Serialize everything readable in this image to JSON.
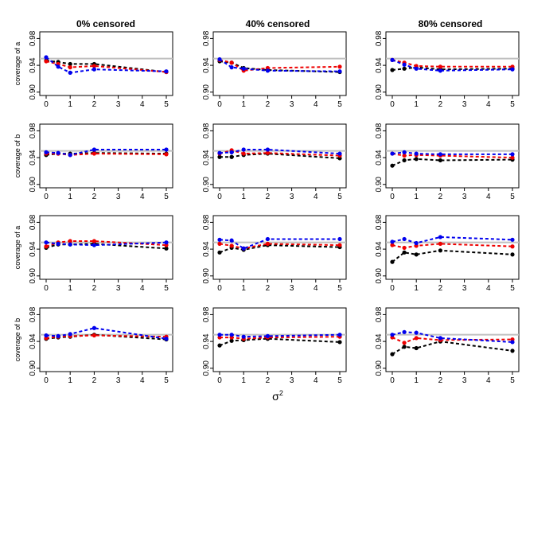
{
  "figure": {
    "column_titles": [
      "0% censored",
      "40% censored",
      "80% censored"
    ],
    "row_ylabels": [
      "coverage of a",
      "coverage of b",
      "coverage of a",
      "coverage of b"
    ],
    "xlabel_base": "σ",
    "xlabel_superscript": "2",
    "reference_color": "#c0c0c0",
    "series_colors": [
      "#000000",
      "#ee0000",
      "#0000ee"
    ]
  },
  "chart_data": [
    {
      "type": "line",
      "panel": "row1-0% censored",
      "title": "0% censored",
      "ylabel": "coverage of a",
      "x": [
        0,
        0.5,
        1,
        2,
        5
      ],
      "xticks": [
        0,
        1,
        2,
        3,
        4,
        5
      ],
      "yticks": [
        0.9,
        0.94,
        0.98
      ],
      "ylim": [
        0.895,
        0.99
      ],
      "xlim": [
        0,
        5
      ],
      "reference_line": 0.95,
      "series": [
        {
          "values": [
            0.947,
            0.945,
            0.942,
            0.942,
            0.93
          ]
        },
        {
          "values": [
            0.946,
            0.942,
            0.937,
            0.939,
            0.93
          ]
        },
        {
          "values": [
            0.952,
            0.938,
            0.929,
            0.934,
            0.931
          ]
        }
      ]
    },
    {
      "type": "line",
      "panel": "row1-40% censored",
      "title": "40% censored",
      "ylabel": "",
      "x": [
        0,
        0.5,
        1,
        2,
        5
      ],
      "xticks": [
        0,
        1,
        2,
        3,
        4,
        5
      ],
      "yticks": [
        0.9,
        0.94,
        0.98
      ],
      "ylim": [
        0.895,
        0.99
      ],
      "xlim": [
        0,
        5
      ],
      "reference_line": 0.95,
      "series": [
        {
          "values": [
            0.946,
            0.944,
            0.936,
            0.933,
            0.93
          ]
        },
        {
          "values": [
            0.948,
            0.944,
            0.932,
            0.936,
            0.938
          ]
        },
        {
          "values": [
            0.949,
            0.937,
            0.935,
            0.932,
            0.931
          ]
        }
      ]
    },
    {
      "type": "line",
      "panel": "row1-80% censored",
      "title": "80% censored",
      "ylabel": "",
      "x": [
        0,
        0.5,
        1,
        2,
        5
      ],
      "xticks": [
        0,
        1,
        2,
        3,
        4,
        5
      ],
      "yticks": [
        0.9,
        0.94,
        0.98
      ],
      "ylim": [
        0.895,
        0.99
      ],
      "xlim": [
        0,
        5
      ],
      "reference_line": 0.95,
      "series": [
        {
          "values": [
            0.933,
            0.935,
            0.937,
            0.934,
            0.935
          ]
        },
        {
          "values": [
            0.948,
            0.944,
            0.939,
            0.938,
            0.938
          ]
        },
        {
          "values": [
            0.948,
            0.941,
            0.935,
            0.932,
            0.934
          ]
        }
      ]
    },
    {
      "type": "line",
      "panel": "row2-0% censored",
      "title": "",
      "ylabel": "coverage of b",
      "x": [
        0,
        0.5,
        1,
        2,
        5
      ],
      "xticks": [
        0,
        1,
        2,
        3,
        4,
        5
      ],
      "yticks": [
        0.9,
        0.94,
        0.98
      ],
      "ylim": [
        0.895,
        0.99
      ],
      "xlim": [
        0,
        5
      ],
      "reference_line": 0.95,
      "series": [
        {
          "values": [
            0.944,
            0.946,
            0.946,
            0.947,
            0.946
          ]
        },
        {
          "values": [
            0.946,
            0.946,
            0.944,
            0.946,
            0.945
          ]
        },
        {
          "values": [
            0.948,
            0.947,
            0.944,
            0.952,
            0.952
          ]
        }
      ]
    },
    {
      "type": "line",
      "panel": "row2-40% censored",
      "title": "",
      "ylabel": "",
      "x": [
        0,
        0.5,
        1,
        2,
        5
      ],
      "xticks": [
        0,
        1,
        2,
        3,
        4,
        5
      ],
      "yticks": [
        0.9,
        0.94,
        0.98
      ],
      "ylim": [
        0.895,
        0.99
      ],
      "xlim": [
        0,
        5
      ],
      "reference_line": 0.95,
      "series": [
        {
          "values": [
            0.941,
            0.941,
            0.944,
            0.946,
            0.939
          ]
        },
        {
          "values": [
            0.946,
            0.951,
            0.946,
            0.947,
            0.943
          ]
        },
        {
          "values": [
            0.947,
            0.948,
            0.952,
            0.952,
            0.946
          ]
        }
      ]
    },
    {
      "type": "line",
      "panel": "row2-80% censored",
      "title": "",
      "ylabel": "",
      "x": [
        0,
        0.5,
        1,
        2,
        5
      ],
      "xticks": [
        0,
        1,
        2,
        3,
        4,
        5
      ],
      "yticks": [
        0.9,
        0.94,
        0.98
      ],
      "ylim": [
        0.895,
        0.99
      ],
      "xlim": [
        0,
        5
      ],
      "reference_line": 0.95,
      "series": [
        {
          "values": [
            0.928,
            0.936,
            0.938,
            0.936,
            0.937
          ]
        },
        {
          "values": [
            0.946,
            0.943,
            0.944,
            0.943,
            0.94
          ]
        },
        {
          "values": [
            0.946,
            0.948,
            0.946,
            0.945,
            0.945
          ]
        }
      ]
    },
    {
      "type": "line",
      "panel": "row3-0% censored",
      "title": "",
      "ylabel": "coverage of a",
      "x": [
        0,
        0.5,
        1,
        2,
        5
      ],
      "xticks": [
        0,
        1,
        2,
        3,
        4,
        5
      ],
      "yticks": [
        0.9,
        0.94,
        0.98
      ],
      "ylim": [
        0.895,
        0.99
      ],
      "xlim": [
        0,
        5
      ],
      "reference_line": 0.95,
      "series": [
        {
          "values": [
            0.942,
            0.947,
            0.947,
            0.948,
            0.941
          ]
        },
        {
          "values": [
            0.944,
            0.95,
            0.952,
            0.952,
            0.946
          ]
        },
        {
          "values": [
            0.95,
            0.948,
            0.947,
            0.946,
            0.95
          ]
        }
      ]
    },
    {
      "type": "line",
      "panel": "row3-40% censored",
      "title": "",
      "ylabel": "",
      "x": [
        0,
        0.5,
        1,
        2,
        5
      ],
      "xticks": [
        0,
        1,
        2,
        3,
        4,
        5
      ],
      "yticks": [
        0.9,
        0.94,
        0.98
      ],
      "ylim": [
        0.895,
        0.99
      ],
      "xlim": [
        0,
        5
      ],
      "reference_line": 0.95,
      "series": [
        {
          "values": [
            0.935,
            0.942,
            0.939,
            0.946,
            0.943
          ]
        },
        {
          "values": [
            0.948,
            0.945,
            0.941,
            0.948,
            0.946
          ]
        },
        {
          "values": [
            0.954,
            0.953,
            0.941,
            0.955,
            0.955
          ]
        }
      ]
    },
    {
      "type": "line",
      "panel": "row3-80% censored",
      "title": "",
      "ylabel": "",
      "x": [
        0,
        0.5,
        1,
        2,
        5
      ],
      "xticks": [
        0,
        1,
        2,
        3,
        4,
        5
      ],
      "yticks": [
        0.9,
        0.94,
        0.98
      ],
      "ylim": [
        0.895,
        0.99
      ],
      "xlim": [
        0,
        5
      ],
      "reference_line": 0.95,
      "series": [
        {
          "values": [
            0.921,
            0.935,
            0.932,
            0.938,
            0.932
          ]
        },
        {
          "values": [
            0.946,
            0.942,
            0.945,
            0.948,
            0.944
          ]
        },
        {
          "values": [
            0.951,
            0.955,
            0.949,
            0.958,
            0.954
          ]
        }
      ]
    },
    {
      "type": "line",
      "panel": "row4-0% censored",
      "title": "",
      "ylabel": "coverage of b",
      "x": [
        0,
        0.5,
        1,
        2,
        5
      ],
      "xticks": [
        0,
        1,
        2,
        3,
        4,
        5
      ],
      "yticks": [
        0.9,
        0.94,
        0.98
      ],
      "ylim": [
        0.895,
        0.99
      ],
      "xlim": [
        0,
        5
      ],
      "reference_line": 0.95,
      "series": [
        {
          "values": [
            0.944,
            0.946,
            0.947,
            0.95,
            0.943
          ]
        },
        {
          "values": [
            0.945,
            0.947,
            0.948,
            0.949,
            0.947
          ]
        },
        {
          "values": [
            0.949,
            0.948,
            0.951,
            0.96,
            0.944
          ]
        }
      ]
    },
    {
      "type": "line",
      "panel": "row4-40% censored",
      "title": "",
      "ylabel": "",
      "x": [
        0,
        0.5,
        1,
        2,
        5
      ],
      "xticks": [
        0,
        1,
        2,
        3,
        4,
        5
      ],
      "yticks": [
        0.9,
        0.94,
        0.98
      ],
      "ylim": [
        0.895,
        0.99
      ],
      "xlim": [
        0,
        5
      ],
      "reference_line": 0.95,
      "series": [
        {
          "values": [
            0.934,
            0.941,
            0.942,
            0.944,
            0.939
          ]
        },
        {
          "values": [
            0.946,
            0.946,
            0.944,
            0.946,
            0.947
          ]
        },
        {
          "values": [
            0.95,
            0.95,
            0.947,
            0.948,
            0.95
          ]
        }
      ]
    },
    {
      "type": "line",
      "panel": "row4-80% censored",
      "title": "",
      "ylabel": "",
      "x": [
        0,
        0.5,
        1,
        2,
        5
      ],
      "xticks": [
        0,
        1,
        2,
        3,
        4,
        5
      ],
      "yticks": [
        0.9,
        0.94,
        0.98
      ],
      "ylim": [
        0.895,
        0.99
      ],
      "xlim": [
        0,
        5
      ],
      "reference_line": 0.95,
      "series": [
        {
          "values": [
            0.921,
            0.932,
            0.93,
            0.94,
            0.926
          ]
        },
        {
          "values": [
            0.946,
            0.938,
            0.945,
            0.942,
            0.943
          ]
        },
        {
          "values": [
            0.95,
            0.954,
            0.953,
            0.945,
            0.939
          ]
        }
      ]
    }
  ]
}
